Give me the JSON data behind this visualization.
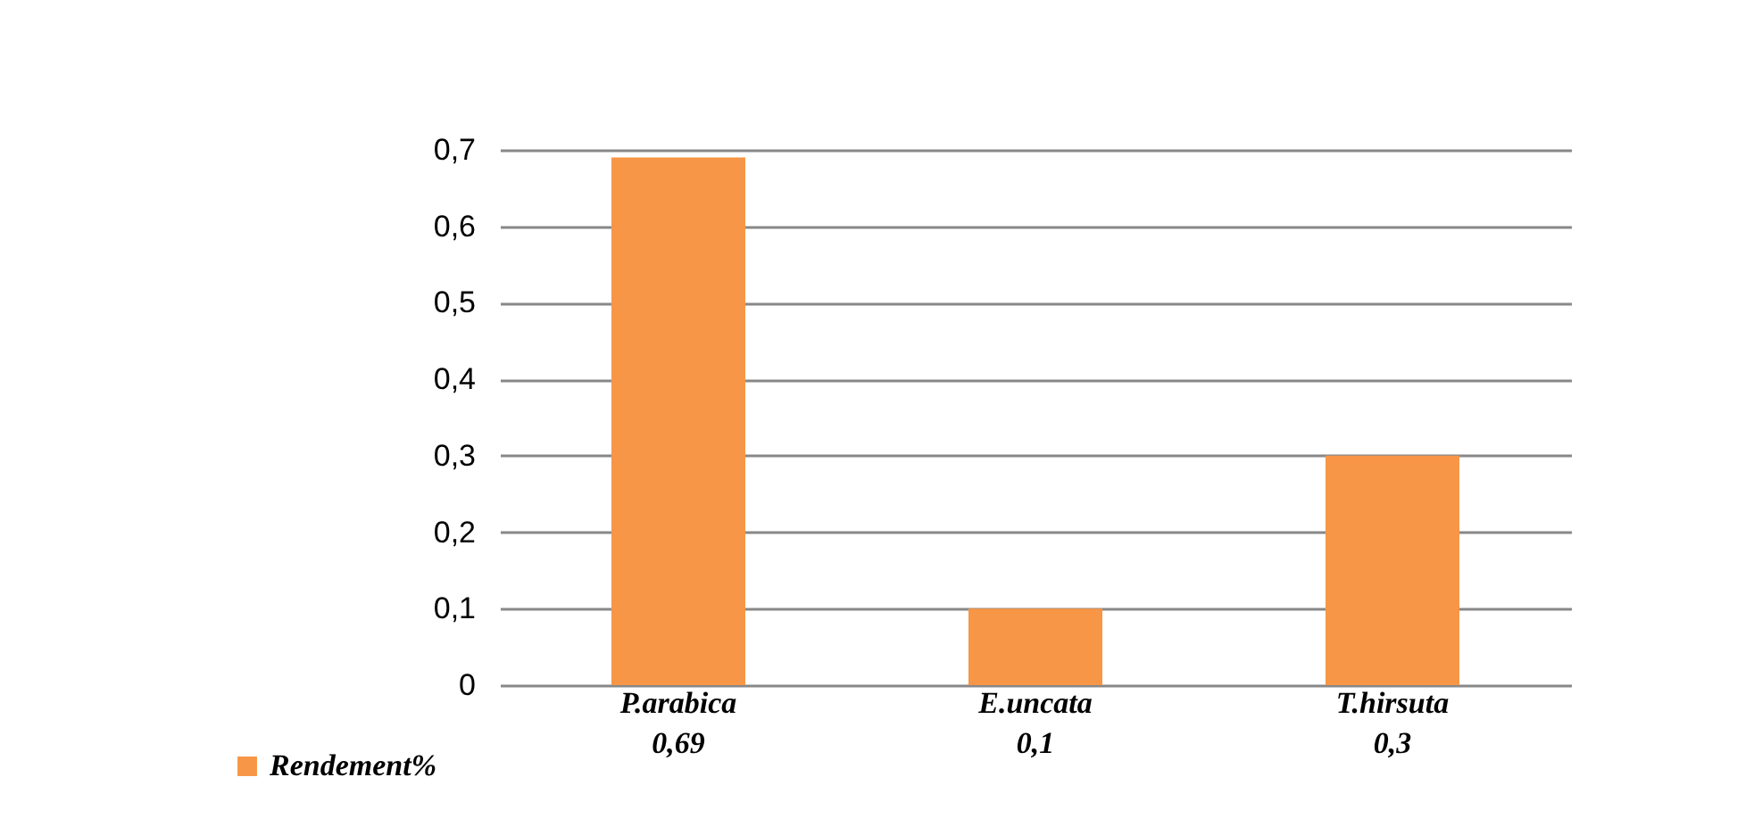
{
  "chart_data": {
    "type": "bar",
    "categories": [
      "P.arabica",
      "E.uncata",
      "T.hirsuta"
    ],
    "series": [
      {
        "name": "Rendement%",
        "color": "#f79646",
        "values": [
          0.69,
          0.1,
          0.3
        ],
        "value_labels": [
          "0,69",
          "0,1",
          "0,3"
        ]
      }
    ],
    "ylim": [
      0,
      0.7
    ],
    "yticks": [
      {
        "value": 0,
        "label": "0"
      },
      {
        "value": 0.1,
        "label": "0,1"
      },
      {
        "value": 0.2,
        "label": "0,2"
      },
      {
        "value": 0.3,
        "label": "0,3"
      },
      {
        "value": 0.4,
        "label": "0,4"
      },
      {
        "value": 0.5,
        "label": "0,5"
      },
      {
        "value": 0.6,
        "label": "0,6"
      },
      {
        "value": 0.7,
        "label": "0,7"
      }
    ],
    "grid": "y",
    "legend": "bottom left"
  }
}
